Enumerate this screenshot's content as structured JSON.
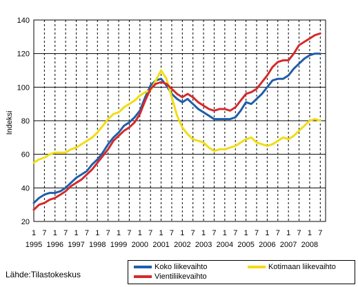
{
  "source": "Lähde:Tilastokeskus",
  "chart_data": {
    "type": "line",
    "title": "",
    "xlabel": "",
    "ylabel": "Indeksi",
    "ylim": [
      20,
      140
    ],
    "yticks": [
      20,
      40,
      60,
      80,
      100,
      120,
      140
    ],
    "xlim": [
      1995.0,
      2008.75
    ],
    "month_ticks": [
      "1",
      "7",
      "1",
      "7",
      "1",
      "7",
      "1",
      "7",
      "1",
      "7",
      "1",
      "7",
      "1",
      "7",
      "1",
      "7",
      "1",
      "7",
      "1",
      "7",
      "1",
      "7",
      "1",
      "7",
      "1",
      "7",
      "1",
      "7"
    ],
    "year_labels": [
      "1995",
      "1996",
      "1997",
      "1998",
      "1999",
      "2000",
      "2001",
      "2002",
      "2003",
      "2004",
      "2005",
      "2006",
      "2007",
      "2008"
    ],
    "grid": {
      "horizontal": "solid",
      "vertical": "dashed"
    },
    "legend_position": "bottom-right",
    "series": [
      {
        "name": "Koko liikevaihto",
        "color": "#1f5fa8",
        "x": [
          1995.0,
          1995.25,
          1995.5,
          1995.75,
          1996.0,
          1996.25,
          1996.5,
          1996.75,
          1997.0,
          1997.25,
          1997.5,
          1997.75,
          1998.0,
          1998.25,
          1998.5,
          1998.75,
          1999.0,
          1999.25,
          1999.5,
          1999.75,
          2000.0,
          2000.25,
          2000.5,
          2000.75,
          2001.0,
          2001.25,
          2001.5,
          2001.75,
          2002.0,
          2002.25,
          2002.5,
          2002.75,
          2003.0,
          2003.25,
          2003.5,
          2003.75,
          2004.0,
          2004.25,
          2004.5,
          2004.75,
          2005.0,
          2005.25,
          2005.5,
          2005.75,
          2006.0,
          2006.25,
          2006.5,
          2006.75,
          2007.0,
          2007.25,
          2007.5,
          2007.75,
          2008.0,
          2008.25,
          2008.5
        ],
        "values": [
          31,
          34,
          36,
          37,
          37,
          38,
          40,
          43,
          46,
          48,
          50,
          54,
          57,
          61,
          66,
          70,
          73,
          77,
          79,
          82,
          86,
          94,
          101,
          104,
          105,
          101,
          96,
          93,
          91,
          93,
          90,
          87,
          85,
          83,
          81,
          81,
          81,
          81,
          82,
          86,
          91,
          90,
          93,
          96,
          100,
          104,
          105,
          105,
          107,
          111,
          114,
          117,
          119,
          120,
          120
        ]
      },
      {
        "name": "Kotimaan liikevaihto",
        "color": "#f2dc13",
        "x": [
          1995.0,
          1995.25,
          1995.5,
          1995.75,
          1996.0,
          1996.25,
          1996.5,
          1996.75,
          1997.0,
          1997.25,
          1997.5,
          1997.75,
          1998.0,
          1998.25,
          1998.5,
          1998.75,
          1999.0,
          1999.25,
          1999.5,
          1999.75,
          2000.0,
          2000.25,
          2000.5,
          2000.75,
          2001.0,
          2001.25,
          2001.5,
          2001.75,
          2002.0,
          2002.25,
          2002.5,
          2002.75,
          2003.0,
          2003.25,
          2003.5,
          2003.75,
          2004.0,
          2004.25,
          2004.5,
          2004.75,
          2005.0,
          2005.25,
          2005.5,
          2005.75,
          2006.0,
          2006.25,
          2006.5,
          2006.75,
          2007.0,
          2007.25,
          2007.5,
          2007.75,
          2008.0,
          2008.25,
          2008.5
        ],
        "values": [
          55,
          57,
          58,
          60,
          61,
          61,
          61,
          63,
          64,
          66,
          68,
          70,
          73,
          77,
          81,
          84,
          85,
          88,
          90,
          92,
          95,
          97,
          98,
          104,
          110,
          105,
          94,
          83,
          76,
          72,
          69,
          68,
          67,
          64,
          62,
          63,
          63,
          64,
          65,
          67,
          69,
          70,
          67,
          66,
          65,
          66,
          68,
          70,
          69,
          71,
          74,
          77,
          80,
          81,
          80
        ]
      },
      {
        "name": "Vientiliikevaihto",
        "color": "#d42a2a",
        "x": [
          1995.0,
          1995.25,
          1995.5,
          1995.75,
          1996.0,
          1996.25,
          1996.5,
          1996.75,
          1997.0,
          1997.25,
          1997.5,
          1997.75,
          1998.0,
          1998.25,
          1998.5,
          1998.75,
          1999.0,
          1999.25,
          1999.5,
          1999.75,
          2000.0,
          2000.25,
          2000.5,
          2000.75,
          2001.0,
          2001.25,
          2001.5,
          2001.75,
          2002.0,
          2002.25,
          2002.5,
          2002.75,
          2003.0,
          2003.25,
          2003.5,
          2003.75,
          2004.0,
          2004.25,
          2004.5,
          2004.75,
          2005.0,
          2005.25,
          2005.5,
          2005.75,
          2006.0,
          2006.25,
          2006.5,
          2006.75,
          2007.0,
          2007.25,
          2007.5,
          2007.75,
          2008.0,
          2008.25,
          2008.5
        ],
        "values": [
          27,
          30,
          31,
          33,
          34,
          36,
          38,
          41,
          43,
          45,
          48,
          51,
          55,
          59,
          63,
          68,
          71,
          74,
          76,
          79,
          84,
          92,
          99,
          102,
          103,
          102,
          99,
          96,
          94,
          96,
          94,
          91,
          89,
          87,
          86,
          87,
          87,
          86,
          88,
          92,
          96,
          97,
          99,
          103,
          107,
          112,
          115,
          116,
          116,
          120,
          125,
          127,
          129,
          131,
          132
        ]
      }
    ]
  }
}
